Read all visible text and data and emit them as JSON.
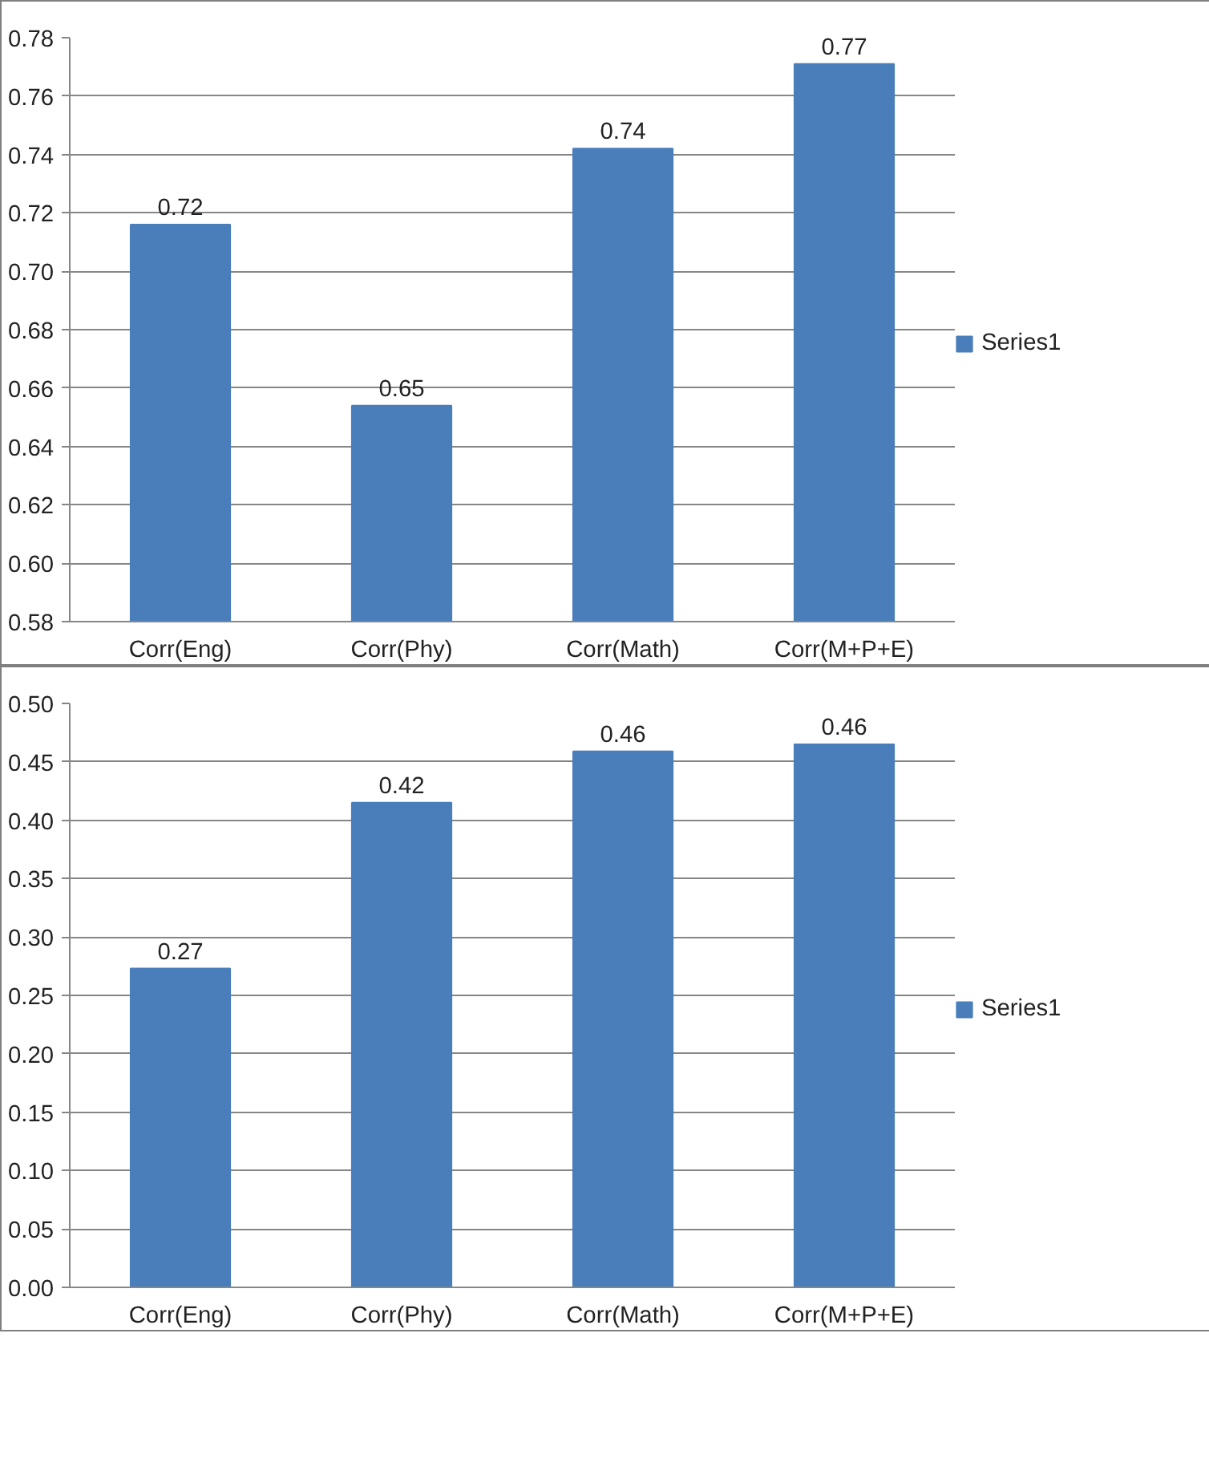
{
  "chart_data": [
    {
      "type": "bar",
      "categories": [
        "Corr(Eng)",
        "Corr(Phy)",
        "Corr(Math)",
        "Corr(M+P+E)"
      ],
      "series": [
        {
          "name": "Series1",
          "color": "#4a7ebb",
          "values": [
            0.716,
            0.654,
            0.742,
            0.771
          ],
          "value_labels": [
            "0.72",
            "0.65",
            "0.74",
            "0.77"
          ]
        }
      ],
      "ylim": [
        0.58,
        0.78
      ],
      "yticks": [
        0.58,
        {
          "value": 0.6,
          "label": "0.60"
        },
        0.62,
        0.64,
        0.66,
        0.68,
        {
          "value": 0.7,
          "label": "0.70"
        },
        0.72,
        0.74,
        0.76,
        0.78
      ],
      "grid": "y",
      "legend": "right"
    },
    {
      "type": "bar",
      "categories": [
        "Corr(Eng)",
        "Corr(Phy)",
        "Corr(Math)",
        "Corr(M+P+E)"
      ],
      "series": [
        {
          "name": "Series1",
          "color": "#4a7ebb",
          "values": [
            0.273,
            0.415,
            0.459,
            0.465
          ],
          "value_labels": [
            "0.27",
            "0.42",
            "0.46",
            "0.46"
          ]
        }
      ],
      "ylim": [
        0,
        0.5
      ],
      "yticks": [
        {
          "value": 0,
          "label": "0.00"
        },
        0.05,
        {
          "value": 0.1,
          "label": "0.10"
        },
        0.15,
        {
          "value": 0.2,
          "label": "0.20"
        },
        0.25,
        {
          "value": 0.3,
          "label": "0.30"
        },
        0.35,
        {
          "value": 0.4,
          "label": "0.40"
        },
        0.45,
        {
          "value": 0.5,
          "label": "0.50"
        }
      ],
      "grid": "y",
      "legend": "right"
    }
  ]
}
